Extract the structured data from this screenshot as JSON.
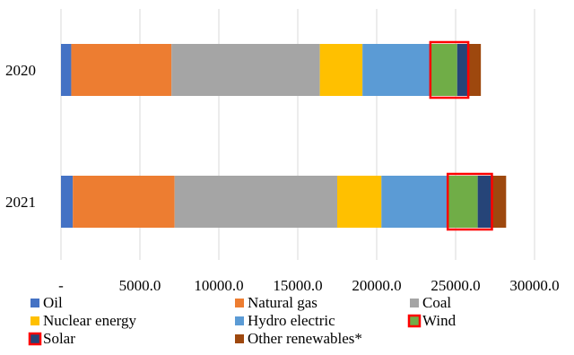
{
  "chart_data": {
    "type": "bar",
    "orientation": "horizontal",
    "stacked": true,
    "title": "",
    "xlabel": "",
    "ylabel": "",
    "categories": [
      "2020",
      "2021"
    ],
    "xlim": [
      0,
      30000
    ],
    "x_tick_values": [
      0,
      5000,
      10000,
      15000,
      20000,
      25000,
      30000
    ],
    "x_tick_labels": [
      "-",
      "5000.0",
      "10000.0",
      "15000.0",
      "20000.0",
      "25000.0",
      "30000.0"
    ],
    "grid": "vertical",
    "legend_position": "bottom",
    "series": [
      {
        "name": "Oil",
        "color": "#4472C4",
        "values": [
          650,
          750
        ]
      },
      {
        "name": "Natural gas",
        "color": "#ED7D31",
        "values": [
          6350,
          6450
        ]
      },
      {
        "name": "Coal",
        "color": "#A5A5A5",
        "values": [
          9400,
          10300
        ]
      },
      {
        "name": "Nuclear energy",
        "color": "#FFC000",
        "values": [
          2700,
          2800
        ]
      },
      {
        "name": "Hydro electric",
        "color": "#5B9BD5",
        "values": [
          4300,
          4200
        ]
      },
      {
        "name": "Wind",
        "color": "#70AD47",
        "values": [
          1700,
          1900
        ],
        "outline": "#FF0000"
      },
      {
        "name": "Solar",
        "color": "#264478",
        "values": [
          700,
          900
        ],
        "outline": "#FF0000"
      },
      {
        "name": "Other renewables*",
        "color": "#9E480E",
        "values": [
          800,
          900
        ]
      }
    ]
  }
}
